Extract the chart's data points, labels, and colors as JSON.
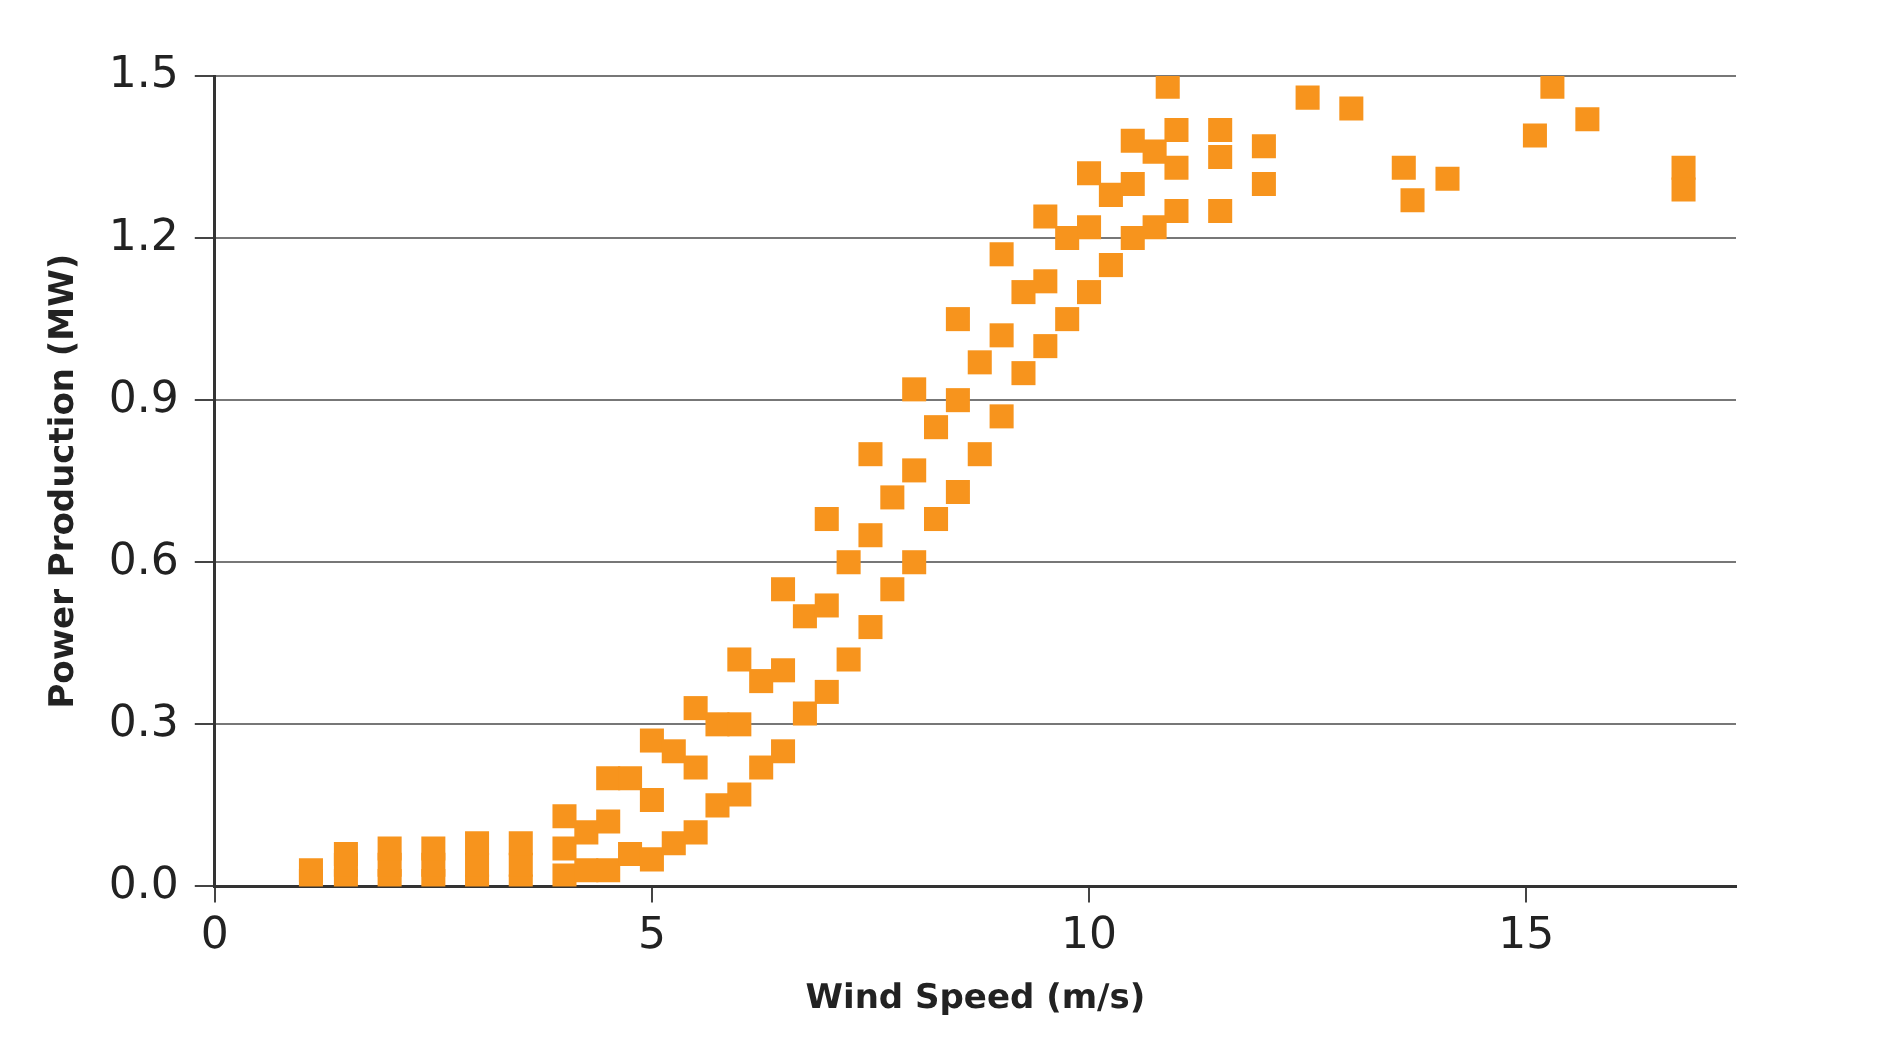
{
  "chart_data": {
    "type": "scatter",
    "xlabel": "Wind Speed (m/s)",
    "ylabel": "Power Production (MW)",
    "xlim": [
      0,
      17.4
    ],
    "xticks": [
      0,
      5,
      10,
      15
    ],
    "ylim": [
      0,
      1.5
    ],
    "yticks": [
      {
        "value": 0,
        "label": "0.0"
      },
      0.3,
      0.6,
      0.9,
      1.2,
      1.5
    ],
    "grid": "y",
    "marker": "square",
    "legend": false,
    "series": [
      {
        "color": "#f7941d",
        "x": [
          1.1,
          1.1,
          1.5,
          1.5,
          1.5,
          2.0,
          2.0,
          2.0,
          2.5,
          2.5,
          2.5,
          3.0,
          3.0,
          3.0,
          3.5,
          3.5,
          3.5,
          4.0,
          4.0,
          4.0,
          4.25,
          4.25,
          4.5,
          4.5,
          4.5,
          4.75,
          4.75,
          5.0,
          5.0,
          5.0,
          5.25,
          5.25,
          5.5,
          5.5,
          5.5,
          5.75,
          5.75,
          6.0,
          6.0,
          6.0,
          6.25,
          6.25,
          6.5,
          6.5,
          6.5,
          6.75,
          6.75,
          7.0,
          7.0,
          7.0,
          7.25,
          7.25,
          7.5,
          7.5,
          7.5,
          7.75,
          7.75,
          8.0,
          8.0,
          8.0,
          8.25,
          8.25,
          8.5,
          8.5,
          8.5,
          8.75,
          8.75,
          9.0,
          9.0,
          9.0,
          9.25,
          9.25,
          9.5,
          9.5,
          9.5,
          9.75,
          9.75,
          10.0,
          10.0,
          10.0,
          10.25,
          10.25,
          10.5,
          10.5,
          10.5,
          10.75,
          10.75,
          11.0,
          11.0,
          11.0,
          11.5,
          11.5,
          11.5,
          12.0,
          12.0,
          10.9,
          12.5,
          13.0,
          13.6,
          13.7,
          14.1,
          15.1,
          15.3,
          15.7,
          16.8,
          16.8
        ],
        "values": [
          0.01,
          0.03,
          0.01,
          0.04,
          0.06,
          0.01,
          0.04,
          0.07,
          0.01,
          0.04,
          0.07,
          0.0,
          0.04,
          0.08,
          0.0,
          0.04,
          0.08,
          0.02,
          0.07,
          0.13,
          0.03,
          0.1,
          0.03,
          0.12,
          0.2,
          0.06,
          0.2,
          0.05,
          0.16,
          0.27,
          0.08,
          0.25,
          0.1,
          0.22,
          0.33,
          0.15,
          0.3,
          0.17,
          0.3,
          0.42,
          0.22,
          0.38,
          0.25,
          0.4,
          0.55,
          0.32,
          0.5,
          0.36,
          0.52,
          0.68,
          0.42,
          0.6,
          0.48,
          0.65,
          0.8,
          0.55,
          0.72,
          0.6,
          0.77,
          0.92,
          0.68,
          0.85,
          0.73,
          0.9,
          1.05,
          0.8,
          0.97,
          0.87,
          1.02,
          1.17,
          0.95,
          1.1,
          1.0,
          1.12,
          1.24,
          1.05,
          1.2,
          1.1,
          1.22,
          1.32,
          1.15,
          1.28,
          1.2,
          1.3,
          1.38,
          1.22,
          1.36,
          1.25,
          1.33,
          1.4,
          1.25,
          1.35,
          1.4,
          1.3,
          1.37,
          1.48,
          1.46,
          1.44,
          1.33,
          1.27,
          1.31,
          1.39,
          1.48,
          1.42,
          1.33,
          1.29
        ]
      }
    ]
  }
}
